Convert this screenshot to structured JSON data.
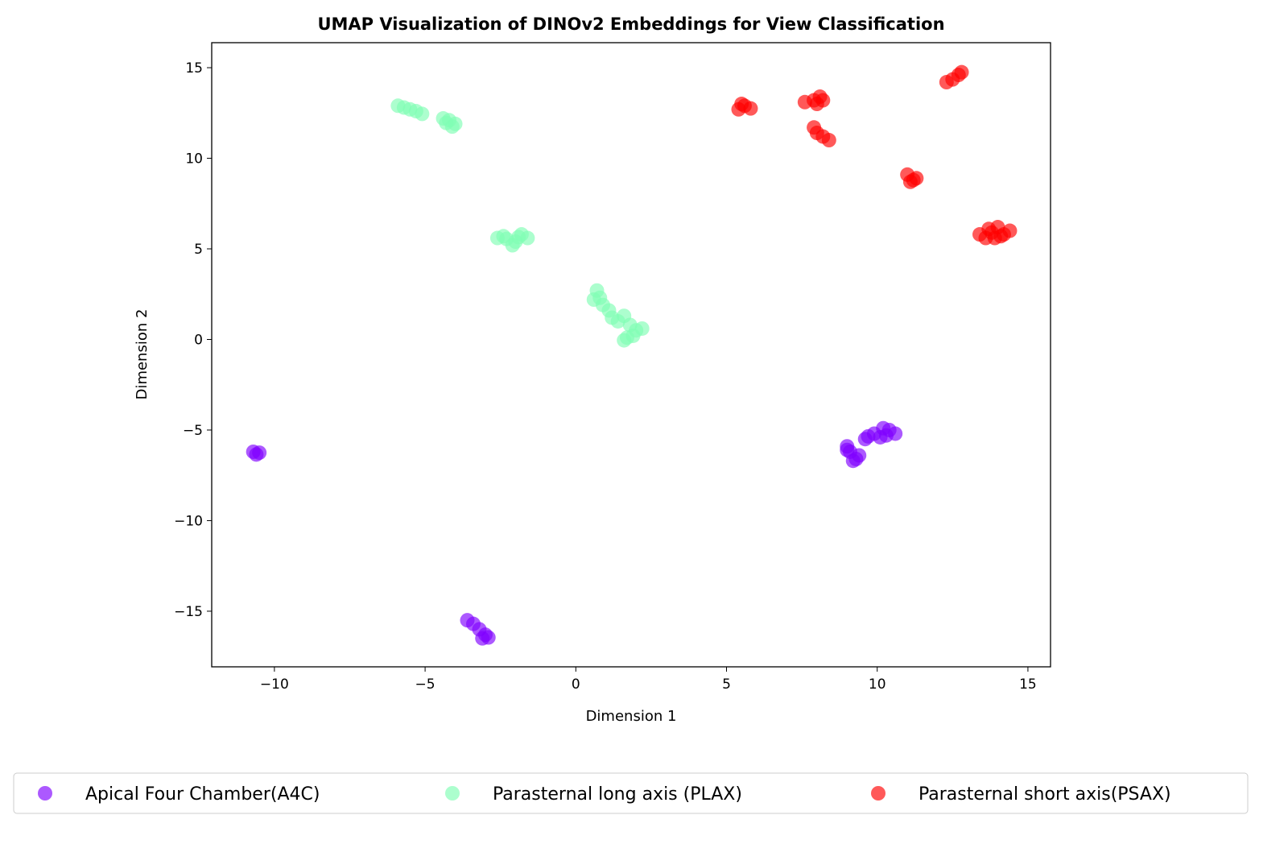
{
  "chart_data": {
    "type": "scatter",
    "title": "UMAP Visualization of DINOv2 Embeddings for View Classification",
    "xlabel": "Dimension 1",
    "ylabel": "Dimension 2",
    "xlim": [
      -12.08,
      15.75
    ],
    "ylim": [
      -18.07,
      16.38
    ],
    "xticks": [
      -10,
      -5,
      0,
      5,
      10,
      15
    ],
    "yticks": [
      -15,
      -10,
      -5,
      0,
      5,
      10,
      15
    ],
    "xtick_labels": [
      "−10",
      "−5",
      "0",
      "5",
      "10",
      "15"
    ],
    "ytick_labels": [
      "−15",
      "−10",
      "−5",
      "0",
      "5",
      "10",
      "15"
    ],
    "grid": false,
    "legend_placement": "bottom-center",
    "marker_alpha": 0.65,
    "series": [
      {
        "name": "Apical Four Chamber(A4C)",
        "color": "#8000ff",
        "points": [
          [
            -10.7,
            -6.2
          ],
          [
            -10.5,
            -6.25
          ],
          [
            -10.6,
            -6.35
          ],
          [
            -3.6,
            -15.5
          ],
          [
            -3.4,
            -15.7
          ],
          [
            -3.2,
            -16.0
          ],
          [
            -3.0,
            -16.3
          ],
          [
            -2.9,
            -16.45
          ],
          [
            -3.1,
            -16.5
          ],
          [
            9.0,
            -5.9
          ],
          [
            9.1,
            -6.2
          ],
          [
            9.3,
            -6.6
          ],
          [
            9.4,
            -6.4
          ],
          [
            9.0,
            -6.1
          ],
          [
            9.6,
            -5.5
          ],
          [
            9.9,
            -5.2
          ],
          [
            10.2,
            -4.9
          ],
          [
            10.4,
            -5.0
          ],
          [
            10.6,
            -5.2
          ],
          [
            10.1,
            -5.4
          ],
          [
            10.3,
            -5.3
          ],
          [
            9.2,
            -6.7
          ],
          [
            9.7,
            -5.35
          ]
        ]
      },
      {
        "name": "Parasternal long axis (PLAX)",
        "color": "#80feb3",
        "points": [
          [
            -5.9,
            12.9
          ],
          [
            -5.7,
            12.8
          ],
          [
            -5.5,
            12.7
          ],
          [
            -5.3,
            12.6
          ],
          [
            -5.1,
            12.45
          ],
          [
            -4.4,
            12.2
          ],
          [
            -4.2,
            12.1
          ],
          [
            -4.0,
            11.9
          ],
          [
            -4.1,
            11.75
          ],
          [
            -4.3,
            11.95
          ],
          [
            -2.6,
            5.6
          ],
          [
            -2.3,
            5.55
          ],
          [
            -2.0,
            5.4
          ],
          [
            -1.8,
            5.8
          ],
          [
            -1.6,
            5.6
          ],
          [
            -2.1,
            5.2
          ],
          [
            -2.4,
            5.7
          ],
          [
            -1.9,
            5.65
          ],
          [
            0.7,
            2.7
          ],
          [
            0.8,
            2.3
          ],
          [
            0.6,
            2.2
          ],
          [
            0.9,
            1.9
          ],
          [
            1.1,
            1.6
          ],
          [
            1.2,
            1.2
          ],
          [
            1.4,
            1.0
          ],
          [
            1.6,
            1.3
          ],
          [
            1.8,
            0.8
          ],
          [
            2.0,
            0.5
          ],
          [
            2.2,
            0.6
          ],
          [
            1.7,
            0.1
          ],
          [
            1.9,
            0.2
          ],
          [
            1.6,
            -0.05
          ]
        ]
      },
      {
        "name": "Parasternal short axis(PSAX)",
        "color": "#ff0000",
        "points": [
          [
            5.4,
            12.7
          ],
          [
            5.6,
            12.9
          ],
          [
            5.5,
            13.0
          ],
          [
            5.8,
            12.75
          ],
          [
            7.6,
            13.1
          ],
          [
            7.9,
            13.2
          ],
          [
            8.1,
            13.4
          ],
          [
            8.0,
            13.0
          ],
          [
            8.2,
            13.2
          ],
          [
            7.9,
            11.7
          ],
          [
            8.0,
            11.4
          ],
          [
            8.2,
            11.2
          ],
          [
            8.4,
            11.0
          ],
          [
            11.0,
            9.1
          ],
          [
            11.2,
            8.8
          ],
          [
            11.3,
            8.9
          ],
          [
            11.1,
            8.7
          ],
          [
            12.3,
            14.2
          ],
          [
            12.5,
            14.35
          ],
          [
            12.7,
            14.6
          ],
          [
            12.8,
            14.75
          ],
          [
            13.4,
            5.8
          ],
          [
            13.6,
            5.6
          ],
          [
            13.8,
            5.9
          ],
          [
            14.0,
            6.2
          ],
          [
            14.2,
            5.8
          ],
          [
            14.4,
            6.0
          ],
          [
            13.9,
            5.6
          ],
          [
            14.1,
            5.7
          ],
          [
            13.7,
            6.1
          ]
        ]
      }
    ]
  }
}
